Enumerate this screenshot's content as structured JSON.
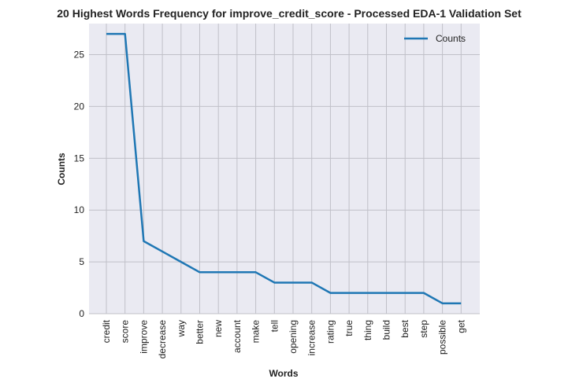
{
  "chart_data": {
    "type": "line",
    "title": "20 Highest Words Frequency for improve_credit_score - Processed EDA-1 Validation Set",
    "xlabel": "Words",
    "ylabel": "Counts",
    "categories": [
      "credit",
      "score",
      "improve",
      "decrease",
      "way",
      "better",
      "new",
      "account",
      "make",
      "tell",
      "opening",
      "increase",
      "rating",
      "true",
      "thing",
      "build",
      "best",
      "step",
      "possible",
      "get"
    ],
    "series": [
      {
        "name": "Counts",
        "values": [
          27,
          27,
          7,
          6,
          5,
          4,
          4,
          4,
          4,
          3,
          3,
          3,
          2,
          2,
          2,
          2,
          2,
          2,
          1,
          1
        ],
        "color": "#1f77b4"
      }
    ],
    "y_ticks": [
      "0",
      "5",
      "10",
      "15",
      "20",
      "25"
    ],
    "ylim": [
      0,
      28
    ],
    "grid": true,
    "legend_position": "top-right",
    "background": "#eaeaf2",
    "grid_color": "#c0c0c8"
  }
}
